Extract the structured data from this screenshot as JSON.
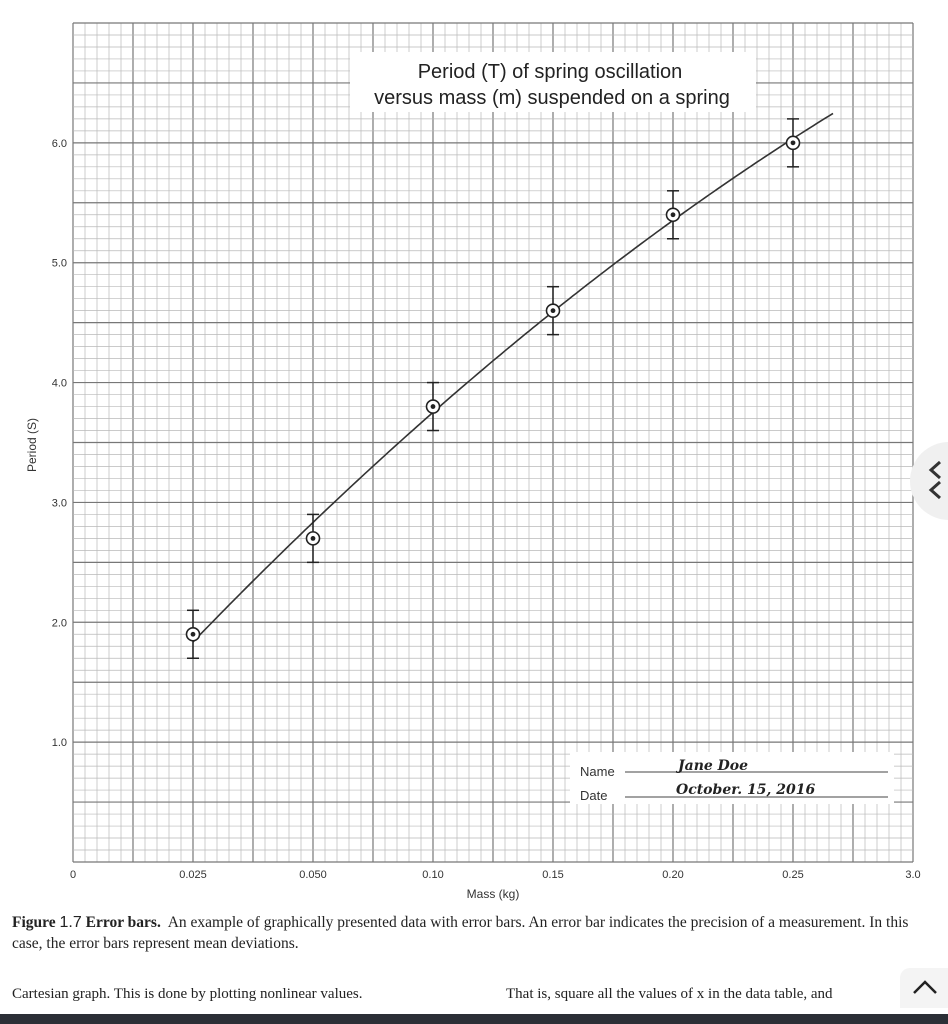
{
  "chart_data": {
    "type": "scatter",
    "title": [
      "Period (T) of spring oscillation",
      "versus mass (m) suspended on a spring"
    ],
    "xlabel": "Mass (kg)",
    "ylabel": "Period (S)",
    "x_ticks": [
      "0",
      "0.025",
      "0.050",
      "0.10",
      "0.15",
      "0.20",
      "0.25",
      "3.0"
    ],
    "y_ticks": [
      "1.0",
      "2.0",
      "3.0",
      "4.0",
      "5.0",
      "6.0"
    ],
    "ylim": [
      0,
      7
    ],
    "grid": true,
    "points": [
      {
        "x": "0.025",
        "y": 1.9,
        "error": 0.2
      },
      {
        "x": "0.050",
        "y": 2.7,
        "error": 0.2
      },
      {
        "x": "0.10",
        "y": 3.8,
        "error": 0.2
      },
      {
        "x": "0.15",
        "y": 4.6,
        "error": 0.2
      },
      {
        "x": "0.20",
        "y": 5.4,
        "error": 0.2
      },
      {
        "x": "0.25",
        "y": 6.0,
        "error": 0.2
      }
    ],
    "fit_curve": true
  },
  "name_box": {
    "name_label": "Name",
    "date_label": "Date",
    "name_value": "Jane Doe",
    "date_value": "October. 15, 2016"
  },
  "caption": {
    "label": "Figure",
    "number": "1.7",
    "title": "Error bars.",
    "text": "An example of graphically presented data with error bars. An error bar indicates the precision of a measurement. In this case, the error bars represent mean deviations."
  },
  "body_text": {
    "left": "Cartesian graph. This is done by plotting nonlinear values.",
    "right": "That is, square all the values of x in the data table, and"
  },
  "icons": {
    "scroll_up": "chevron-up-icon",
    "side_tab": "chevron-left-icon"
  }
}
